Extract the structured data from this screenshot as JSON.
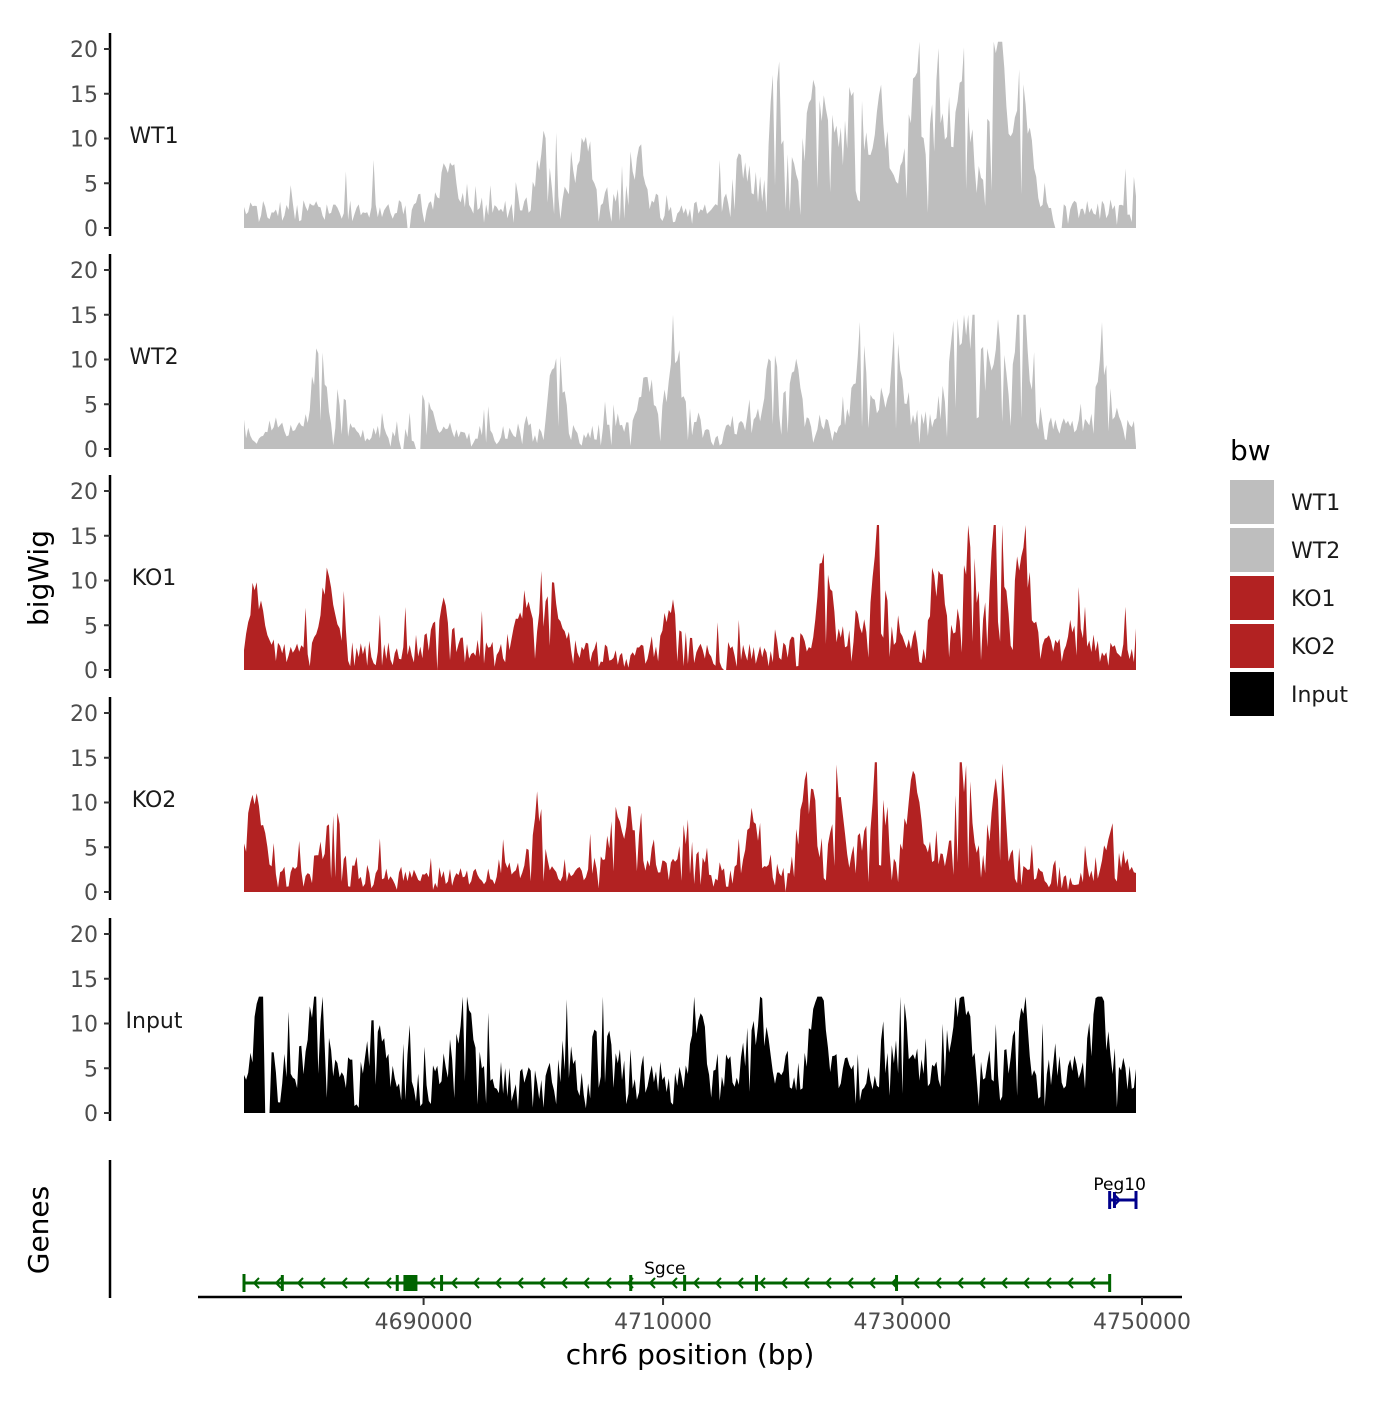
{
  "chart_data": {
    "type": "area",
    "chromosome": "chr6",
    "xlabel": "chr6 position (bp)",
    "ylabel": "bigWig",
    "genes_label": "Genes",
    "x_range": [
      4675000,
      4749500
    ],
    "x_ticks": [
      4690000,
      4710000,
      4730000,
      4750000
    ],
    "x_tick_labels": [
      "4690000",
      "4710000",
      "4730000",
      "4750000"
    ],
    "y_range": [
      0,
      21
    ],
    "y_ticks": [
      0,
      5,
      10,
      15,
      20
    ],
    "y_tick_labels": [
      "0",
      "5",
      "10",
      "15",
      "20"
    ],
    "legend": {
      "title": "bw",
      "position": "right",
      "entries": [
        {
          "label": "WT1",
          "color": "#bebebe"
        },
        {
          "label": "WT2",
          "color": "#bebebe"
        },
        {
          "label": "KO1",
          "color": "#b22222"
        },
        {
          "label": "KO2",
          "color": "#b22222"
        },
        {
          "label": "Input",
          "color": "#000000"
        }
      ]
    },
    "series": [
      {
        "name": "WT1",
        "color": "#bebebe",
        "max": 20.8,
        "gaps": [
          [
            4688500,
            4688900
          ],
          [
            4742600,
            4743400
          ]
        ],
        "peaks": [
          [
            4692000,
            7
          ],
          [
            4700000,
            8
          ],
          [
            4703500,
            9
          ],
          [
            4708000,
            7
          ],
          [
            4716500,
            6
          ],
          [
            4719500,
            15
          ],
          [
            4722500,
            13
          ],
          [
            4724000,
            12
          ],
          [
            4726000,
            14
          ],
          [
            4728000,
            11
          ],
          [
            4731000,
            13
          ],
          [
            4733000,
            12
          ],
          [
            4735000,
            15
          ],
          [
            4738000,
            20.8
          ],
          [
            4740000,
            13
          ]
        ],
        "baseline": 2.2
      },
      {
        "name": "WT2",
        "color": "#bebebe",
        "max": 15,
        "gaps": [
          [
            4688000,
            4688400
          ],
          [
            4689300,
            4689800
          ]
        ],
        "peaks": [
          [
            4681300,
            10
          ],
          [
            4690000,
            5
          ],
          [
            4701000,
            9
          ],
          [
            4708500,
            6
          ],
          [
            4711000,
            10
          ],
          [
            4719000,
            8
          ],
          [
            4721000,
            8
          ],
          [
            4726500,
            10
          ],
          [
            4729500,
            10
          ],
          [
            4734500,
            13
          ],
          [
            4736000,
            14
          ],
          [
            4738000,
            10
          ],
          [
            4740000,
            15
          ],
          [
            4746700,
            10
          ]
        ],
        "baseline": 1.8
      },
      {
        "name": "KO1",
        "color": "#b22222",
        "max": 16.2,
        "gaps": [
          [
            4691000,
            4691300
          ],
          [
            4715000,
            4715300
          ]
        ],
        "peaks": [
          [
            4676000,
            8
          ],
          [
            4682000,
            8
          ],
          [
            4691500,
            6
          ],
          [
            4698500,
            6
          ],
          [
            4700500,
            8.5
          ],
          [
            4710500,
            6
          ],
          [
            4723500,
            11
          ],
          [
            4728000,
            16.2
          ],
          [
            4733000,
            9
          ],
          [
            4735500,
            12
          ],
          [
            4738000,
            16.2
          ],
          [
            4740000,
            12
          ],
          [
            4744500,
            4
          ]
        ],
        "baseline": 2.2
      },
      {
        "name": "KO2",
        "color": "#b22222",
        "max": 14.5,
        "gaps": [
          [
            4720200,
            4720400
          ]
        ],
        "peaks": [
          [
            4676000,
            10
          ],
          [
            4682500,
            7
          ],
          [
            4699500,
            8
          ],
          [
            4706000,
            6
          ],
          [
            4707500,
            7
          ],
          [
            4712000,
            5
          ],
          [
            4717500,
            7
          ],
          [
            4722000,
            12
          ],
          [
            4724500,
            10
          ],
          [
            4728000,
            14.5
          ],
          [
            4731000,
            9
          ],
          [
            4735000,
            13
          ],
          [
            4738000,
            13
          ],
          [
            4747500,
            6
          ]
        ],
        "baseline": 2.0
      },
      {
        "name": "Input",
        "color": "#000000",
        "max": 13,
        "gaps": [
          [
            4676700,
            4677300
          ]
        ],
        "peaks": [
          [
            4676500,
            13
          ],
          [
            4681000,
            13
          ],
          [
            4686000,
            9
          ],
          [
            4693500,
            11
          ],
          [
            4705000,
            13
          ],
          [
            4713000,
            10
          ],
          [
            4718000,
            9
          ],
          [
            4723000,
            11
          ],
          [
            4730000,
            10
          ],
          [
            4735000,
            11
          ],
          [
            4740000,
            9
          ],
          [
            4746500,
            10
          ]
        ],
        "baseline": 4.0
      }
    ],
    "genes": [
      {
        "name": "Sgce",
        "strand": "-",
        "start": 4675000,
        "end": 4747300,
        "color": "#006400",
        "exons": [
          4678200,
          4687800,
          4688900,
          4691500,
          4707300,
          4711800,
          4717800,
          4729500
        ]
      },
      {
        "name": "Peg10",
        "strand": "+",
        "start": 4747300,
        "end": 4749500,
        "color": "#00008b",
        "exons": [
          4747700
        ]
      }
    ]
  }
}
